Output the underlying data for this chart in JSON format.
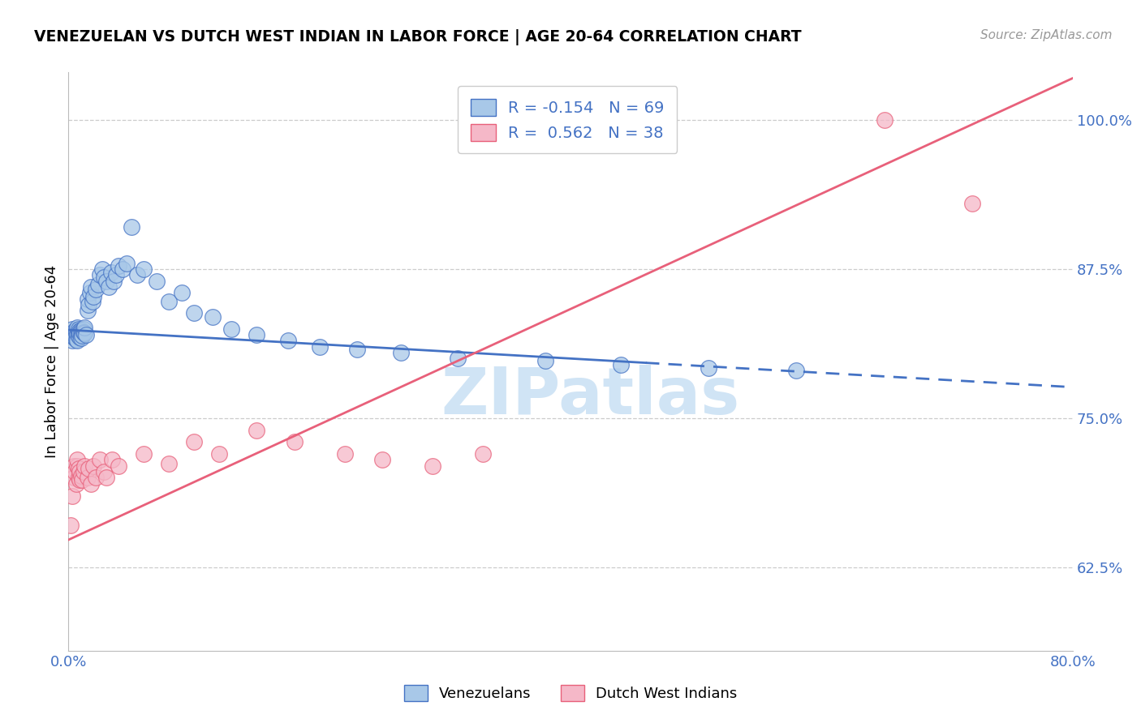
{
  "title": "VENEZUELAN VS DUTCH WEST INDIAN IN LABOR FORCE | AGE 20-64 CORRELATION CHART",
  "source": "Source: ZipAtlas.com",
  "ylabel": "In Labor Force | Age 20-64",
  "xlim": [
    0.0,
    0.8
  ],
  "ylim": [
    0.555,
    1.04
  ],
  "yticks": [
    0.625,
    0.75,
    0.875,
    1.0
  ],
  "ytick_labels": [
    "62.5%",
    "75.0%",
    "87.5%",
    "100.0%"
  ],
  "blue_R": -0.154,
  "blue_N": 69,
  "pink_R": 0.562,
  "pink_N": 38,
  "blue_color": "#a8c8e8",
  "pink_color": "#f5b8c8",
  "blue_line_color": "#4472c4",
  "pink_line_color": "#e8607a",
  "watermark": "ZIPatlas",
  "watermark_color": "#d0e4f5",
  "legend_label_blue": "Venezuelans",
  "legend_label_pink": "Dutch West Indians",
  "blue_line_x0": 0.0,
  "blue_line_y0": 0.824,
  "blue_line_x1": 0.8,
  "blue_line_y1": 0.776,
  "blue_line_solid_end": 0.46,
  "pink_line_x0": 0.0,
  "pink_line_y0": 0.648,
  "pink_line_x1": 0.8,
  "pink_line_y1": 1.035,
  "blue_scatter_x": [
    0.002,
    0.003,
    0.003,
    0.004,
    0.004,
    0.005,
    0.005,
    0.005,
    0.006,
    0.006,
    0.006,
    0.007,
    0.007,
    0.007,
    0.008,
    0.008,
    0.008,
    0.009,
    0.009,
    0.009,
    0.01,
    0.01,
    0.01,
    0.011,
    0.011,
    0.012,
    0.012,
    0.013,
    0.013,
    0.014,
    0.015,
    0.015,
    0.016,
    0.017,
    0.018,
    0.019,
    0.02,
    0.022,
    0.024,
    0.025,
    0.027,
    0.028,
    0.03,
    0.032,
    0.034,
    0.036,
    0.038,
    0.04,
    0.043,
    0.046,
    0.05,
    0.055,
    0.06,
    0.07,
    0.08,
    0.09,
    0.1,
    0.115,
    0.13,
    0.15,
    0.175,
    0.2,
    0.23,
    0.265,
    0.31,
    0.38,
    0.44,
    0.51,
    0.58
  ],
  "blue_scatter_y": [
    0.82,
    0.815,
    0.825,
    0.818,
    0.822,
    0.819,
    0.823,
    0.817,
    0.821,
    0.816,
    0.824,
    0.82,
    0.826,
    0.815,
    0.822,
    0.819,
    0.825,
    0.818,
    0.823,
    0.821,
    0.82,
    0.824,
    0.817,
    0.823,
    0.819,
    0.825,
    0.822,
    0.821,
    0.826,
    0.82,
    0.84,
    0.85,
    0.845,
    0.855,
    0.86,
    0.848,
    0.852,
    0.858,
    0.862,
    0.87,
    0.875,
    0.868,
    0.865,
    0.86,
    0.872,
    0.865,
    0.87,
    0.878,
    0.875,
    0.88,
    0.91,
    0.87,
    0.875,
    0.865,
    0.848,
    0.855,
    0.838,
    0.835,
    0.825,
    0.82,
    0.815,
    0.81,
    0.808,
    0.805,
    0.8,
    0.798,
    0.795,
    0.792,
    0.79
  ],
  "pink_scatter_x": [
    0.002,
    0.003,
    0.004,
    0.004,
    0.005,
    0.006,
    0.007,
    0.007,
    0.008,
    0.008,
    0.009,
    0.009,
    0.01,
    0.011,
    0.012,
    0.013,
    0.015,
    0.016,
    0.018,
    0.02,
    0.022,
    0.025,
    0.028,
    0.03,
    0.035,
    0.04,
    0.06,
    0.08,
    0.1,
    0.12,
    0.15,
    0.18,
    0.22,
    0.25,
    0.29,
    0.33,
    0.65,
    0.72
  ],
  "pink_scatter_y": [
    0.66,
    0.685,
    0.71,
    0.7,
    0.705,
    0.695,
    0.71,
    0.715,
    0.7,
    0.708,
    0.705,
    0.698,
    0.702,
    0.698,
    0.705,
    0.71,
    0.7,
    0.708,
    0.695,
    0.71,
    0.7,
    0.715,
    0.705,
    0.7,
    0.715,
    0.71,
    0.72,
    0.712,
    0.73,
    0.72,
    0.74,
    0.73,
    0.72,
    0.715,
    0.71,
    0.72,
    1.0,
    0.93
  ]
}
